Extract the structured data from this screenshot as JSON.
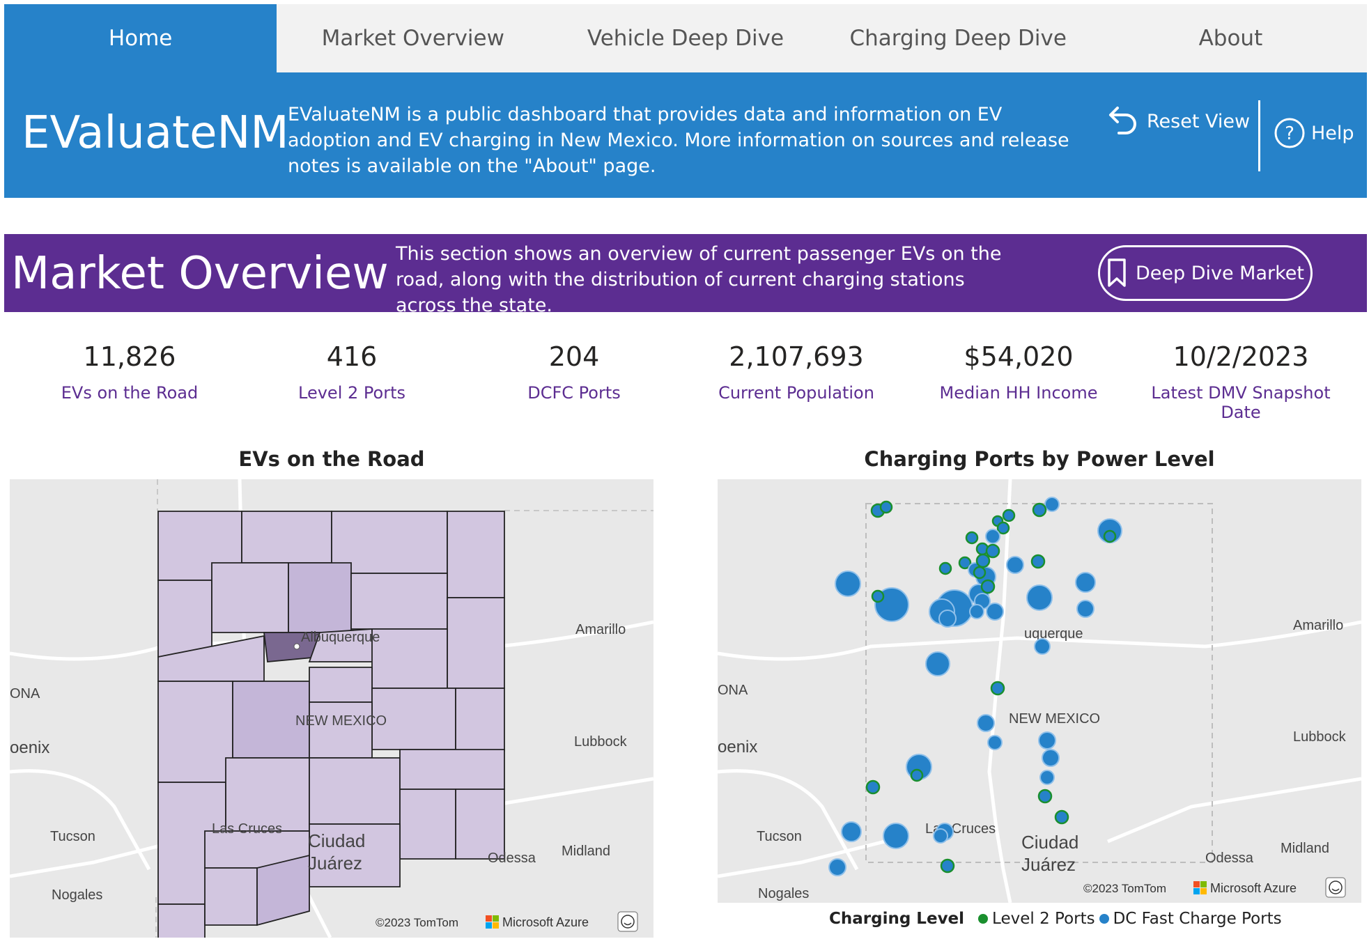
{
  "nav": {
    "tabs": [
      {
        "label": "Home",
        "active": true
      },
      {
        "label": "Market Overview",
        "active": false
      },
      {
        "label": "Vehicle Deep Dive",
        "active": false
      },
      {
        "label": "Charging Deep Dive",
        "active": false
      },
      {
        "label": "About",
        "active": false
      }
    ]
  },
  "header": {
    "title": "EValuateNM",
    "description": "EValuateNM is a public dashboard that provides data and information on EV adoption and EV charging in New Mexico. More information on sources and release notes is available on the \"About\" page.",
    "reset_label": "Reset View",
    "help_label": "Help"
  },
  "section": {
    "title": "Market Overview",
    "description": "This section shows an overview of current passenger EVs on the road, along with the distribution of current charging stations across the state.",
    "button_label": "Deep Dive Market"
  },
  "kpis": [
    {
      "value": "11,826",
      "label": "EVs on the Road"
    },
    {
      "value": "416",
      "label": "Level 2 Ports"
    },
    {
      "value": "204",
      "label": "DCFC Ports"
    },
    {
      "value": "2,107,693",
      "label": "Current Population"
    },
    {
      "value": "$54,020",
      "label": "Median HH Income"
    },
    {
      "value": "10/2/2023",
      "label": "Latest DMV Snapshot Date"
    }
  ],
  "maps": {
    "evs": {
      "title": "EVs on the Road",
      "places": {
        "albuquerque": "Albuquerque",
        "new_mexico": "NEW MEXICO",
        "las_cruces": "Las Cruces",
        "ciudad": "Ciudad",
        "juarez": "Juárez",
        "amarillo": "Amarillo",
        "lubbock": "Lubbock",
        "midland": "Midland",
        "odessa": "Odessa",
        "tucson": "Tucson",
        "nogales": "Nogales",
        "ona": "ONA",
        "oenix": "oenix"
      },
      "attribution": "©2023 TomTom",
      "provider": "Microsoft Azure"
    },
    "ports": {
      "title": "Charging Ports by Power Level",
      "places": {
        "albuquerque": "uquerque",
        "new_mexico": "NEW MEXICO",
        "las_cruces": "Las Cruces",
        "ciudad": "Ciudad",
        "juarez": "Juárez",
        "amarillo": "Amarillo",
        "lubbock": "Lubbock",
        "midland": "Midland",
        "odessa": "Odessa",
        "tucson": "Tucson",
        "nogales": "Nogales",
        "ona": "ONA",
        "oenix": "oenix"
      },
      "attribution": "©2023 TomTom",
      "provider": "Microsoft Azure",
      "legend": {
        "title": "Charging Level",
        "items": [
          {
            "label": "Level 2 Ports",
            "color": "#1a8f2e"
          },
          {
            "label": "DC Fast Charge Ports",
            "color": "#2682c9"
          }
        ]
      }
    }
  },
  "colors": {
    "nav_active": "#2682c9",
    "header": "#2682c9",
    "section": "#5c2d91",
    "kpi_label": "#5c2d91",
    "county_fill": "#d2c6e0",
    "county_dark": "#7a6890"
  }
}
